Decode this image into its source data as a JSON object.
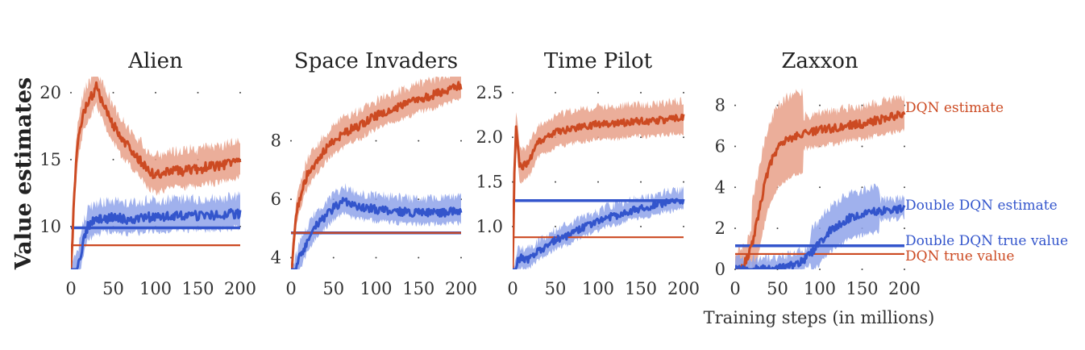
{
  "figure": {
    "ylabel": "Value estimates",
    "xlabel": "Training steps (in millions)"
  },
  "colors": {
    "dqn": "#cc4a22",
    "dqn_band": "#e8a088",
    "ddqn": "#3355cc",
    "ddqn_band": "#8fa3ea",
    "dot": "#444444"
  },
  "legend_labels": {
    "dqn_estimate": "DQN estimate",
    "ddqn_estimate": "Double DQN estimate",
    "ddqn_true": "Double DQN true value",
    "dqn_true": "DQN true value"
  },
  "chart_data": [
    {
      "type": "line",
      "title": "Alien",
      "xlim": [
        0,
        200
      ],
      "ylim": [
        6.8,
        21.2
      ],
      "xticks": [
        0,
        50,
        100,
        150,
        200
      ],
      "yticks": [
        10,
        15,
        20
      ],
      "ytick_labels": [
        "10",
        "15",
        "20"
      ],
      "noise": 0.9,
      "series": [
        {
          "key": "dqn",
          "x": [
            0,
            3,
            6,
            10,
            15,
            20,
            25,
            30,
            35,
            40,
            50,
            60,
            70,
            80,
            90,
            100,
            110,
            120,
            130,
            140,
            150,
            160,
            170,
            180,
            190,
            200
          ],
          "values": [
            6.5,
            11,
            15,
            17,
            18.5,
            19.2,
            19.8,
            20.4,
            19.6,
            18.8,
            17.6,
            16.5,
            15.8,
            15.1,
            14.2,
            13.8,
            14,
            14.2,
            14.1,
            14.3,
            14.2,
            14.5,
            14.5,
            14.6,
            14.8,
            15
          ],
          "band": 1.0
        },
        {
          "key": "ddqn",
          "x": [
            0,
            5,
            10,
            15,
            20,
            25,
            30,
            40,
            50,
            60,
            70,
            80,
            90,
            100,
            120,
            140,
            160,
            180,
            200
          ],
          "values": [
            5.5,
            6.5,
            7.5,
            9,
            10,
            10.3,
            10.5,
            10.6,
            10.7,
            10.6,
            10.5,
            10.6,
            10.7,
            10.7,
            10.8,
            10.8,
            10.8,
            10.9,
            11
          ],
          "band": 0.8
        },
        {
          "key": "ddqn_true",
          "x": [
            0,
            200
          ],
          "values": [
            9.9,
            9.9
          ]
        },
        {
          "key": "dqn_true",
          "x": [
            0,
            200
          ],
          "values": [
            8.6,
            8.6
          ]
        }
      ]
    },
    {
      "type": "line",
      "title": "Space Invaders",
      "xlim": [
        0,
        200
      ],
      "ylim": [
        3.6,
        10.2
      ],
      "xticks": [
        0,
        50,
        100,
        150,
        200
      ],
      "yticks": [
        4,
        6,
        8
      ],
      "ytick_labels": [
        "4",
        "6",
        "8"
      ],
      "noise": 0.35,
      "series": [
        {
          "key": "dqn",
          "x": [
            0,
            3,
            6,
            10,
            15,
            20,
            30,
            40,
            50,
            60,
            70,
            80,
            90,
            100,
            110,
            120,
            130,
            140,
            150,
            160,
            170,
            180,
            190,
            200
          ],
          "values": [
            3,
            4.5,
            5.5,
            6,
            6.5,
            6.9,
            7.3,
            7.7,
            8,
            8.2,
            8.4,
            8.5,
            8.7,
            8.85,
            9,
            9.1,
            9.2,
            9.3,
            9.45,
            9.5,
            9.6,
            9.7,
            9.8,
            9.9
          ],
          "band": 0.35
        },
        {
          "key": "ddqn",
          "x": [
            0,
            5,
            10,
            15,
            20,
            25,
            30,
            40,
            50,
            60,
            65,
            70,
            80,
            90,
            100,
            120,
            140,
            160,
            180,
            200
          ],
          "values": [
            3,
            3.5,
            4,
            4.3,
            4.6,
            4.9,
            5.1,
            5.4,
            5.7,
            5.9,
            5.95,
            5.8,
            5.7,
            5.7,
            5.65,
            5.6,
            5.55,
            5.55,
            5.55,
            5.6
          ],
          "band": 0.3
        },
        {
          "key": "ddqn_true",
          "x": [
            0,
            200
          ],
          "values": [
            4.85,
            4.85
          ]
        },
        {
          "key": "dqn_true",
          "x": [
            0,
            200
          ],
          "values": [
            4.85,
            4.85
          ]
        }
      ]
    },
    {
      "type": "line",
      "title": "Time Pilot",
      "xlim": [
        0,
        200
      ],
      "ylim": [
        0.52,
        2.68
      ],
      "xticks": [
        0,
        50,
        100,
        150,
        200
      ],
      "yticks": [
        1.0,
        1.5,
        2.0,
        2.5
      ],
      "ytick_labels": [
        "1.0",
        "1.5",
        "2.0",
        "2.5"
      ],
      "noise": 0.1,
      "series": [
        {
          "key": "dqn",
          "x": [
            0,
            2,
            4,
            6,
            8,
            10,
            15,
            20,
            25,
            30,
            40,
            50,
            60,
            70,
            80,
            90,
            100,
            120,
            140,
            160,
            180,
            200
          ],
          "values": [
            0.5,
            1.6,
            2.1,
            1.9,
            1.7,
            1.65,
            1.7,
            1.75,
            1.85,
            1.95,
            2.0,
            2.05,
            2.08,
            2.1,
            2.12,
            2.13,
            2.15,
            2.15,
            2.18,
            2.18,
            2.2,
            2.22
          ],
          "band": 0.14
        },
        {
          "key": "ddqn",
          "x": [
            0,
            3,
            6,
            10,
            15,
            20,
            25,
            30,
            40,
            50,
            60,
            70,
            80,
            90,
            100,
            110,
            120,
            130,
            140,
            150,
            160,
            170,
            180,
            190,
            200
          ],
          "values": [
            0.4,
            0.5,
            0.62,
            0.65,
            0.62,
            0.64,
            0.68,
            0.72,
            0.78,
            0.85,
            0.88,
            0.92,
            0.98,
            1.02,
            1.05,
            1.1,
            1.12,
            1.15,
            1.18,
            1.2,
            1.22,
            1.25,
            1.27,
            1.28,
            1.3
          ],
          "band": 0.07
        },
        {
          "key": "ddqn_true",
          "x": [
            0,
            200
          ],
          "values": [
            1.29,
            1.29
          ]
        },
        {
          "key": "dqn_true",
          "x": [
            0,
            200
          ],
          "values": [
            0.88,
            0.88
          ]
        }
      ]
    },
    {
      "type": "line",
      "title": "Zaxxon",
      "xlim": [
        0,
        200
      ],
      "ylim": [
        0,
        9.4
      ],
      "xticks": [
        0,
        50,
        100,
        150,
        200
      ],
      "yticks": [
        0,
        2,
        4,
        6,
        8
      ],
      "ytick_labels": [
        "0",
        "2",
        "4",
        "6",
        "8"
      ],
      "noise": 0.5,
      "series": [
        {
          "key": "dqn",
          "x": [
            0,
            5,
            10,
            15,
            20,
            25,
            30,
            35,
            40,
            45,
            50,
            60,
            70,
            80,
            90,
            100,
            110,
            120,
            130,
            140,
            150,
            160,
            170,
            180,
            190,
            200
          ],
          "values": [
            0,
            0.1,
            0.2,
            0.6,
            1.2,
            2.2,
            3.2,
            4.2,
            5,
            5.5,
            5.9,
            6.3,
            6.5,
            6.6,
            6.7,
            6.8,
            6.85,
            6.9,
            7,
            7.05,
            7.1,
            7.2,
            7.3,
            7.4,
            7.5,
            7.6
          ],
          "band": 0.6,
          "band_wide": [
            [
              20,
              80,
              1.8
            ]
          ]
        },
        {
          "key": "ddqn",
          "x": [
            0,
            40,
            60,
            70,
            80,
            90,
            100,
            110,
            120,
            130,
            140,
            150,
            160,
            170,
            180,
            190,
            200
          ],
          "values": [
            0,
            0,
            0.1,
            0.2,
            0.4,
            0.8,
            1.3,
            1.8,
            2.1,
            2.4,
            2.6,
            2.7,
            2.8,
            2.85,
            2.9,
            2.9,
            3.0
          ],
          "band": 0.3,
          "band_wide": [
            [
              90,
              170,
              0.9
            ]
          ]
        },
        {
          "key": "ddqn_true",
          "x": [
            0,
            200
          ],
          "values": [
            1.15,
            1.15
          ]
        },
        {
          "key": "dqn_true",
          "x": [
            0,
            200
          ],
          "values": [
            0.75,
            0.75
          ]
        }
      ]
    }
  ]
}
